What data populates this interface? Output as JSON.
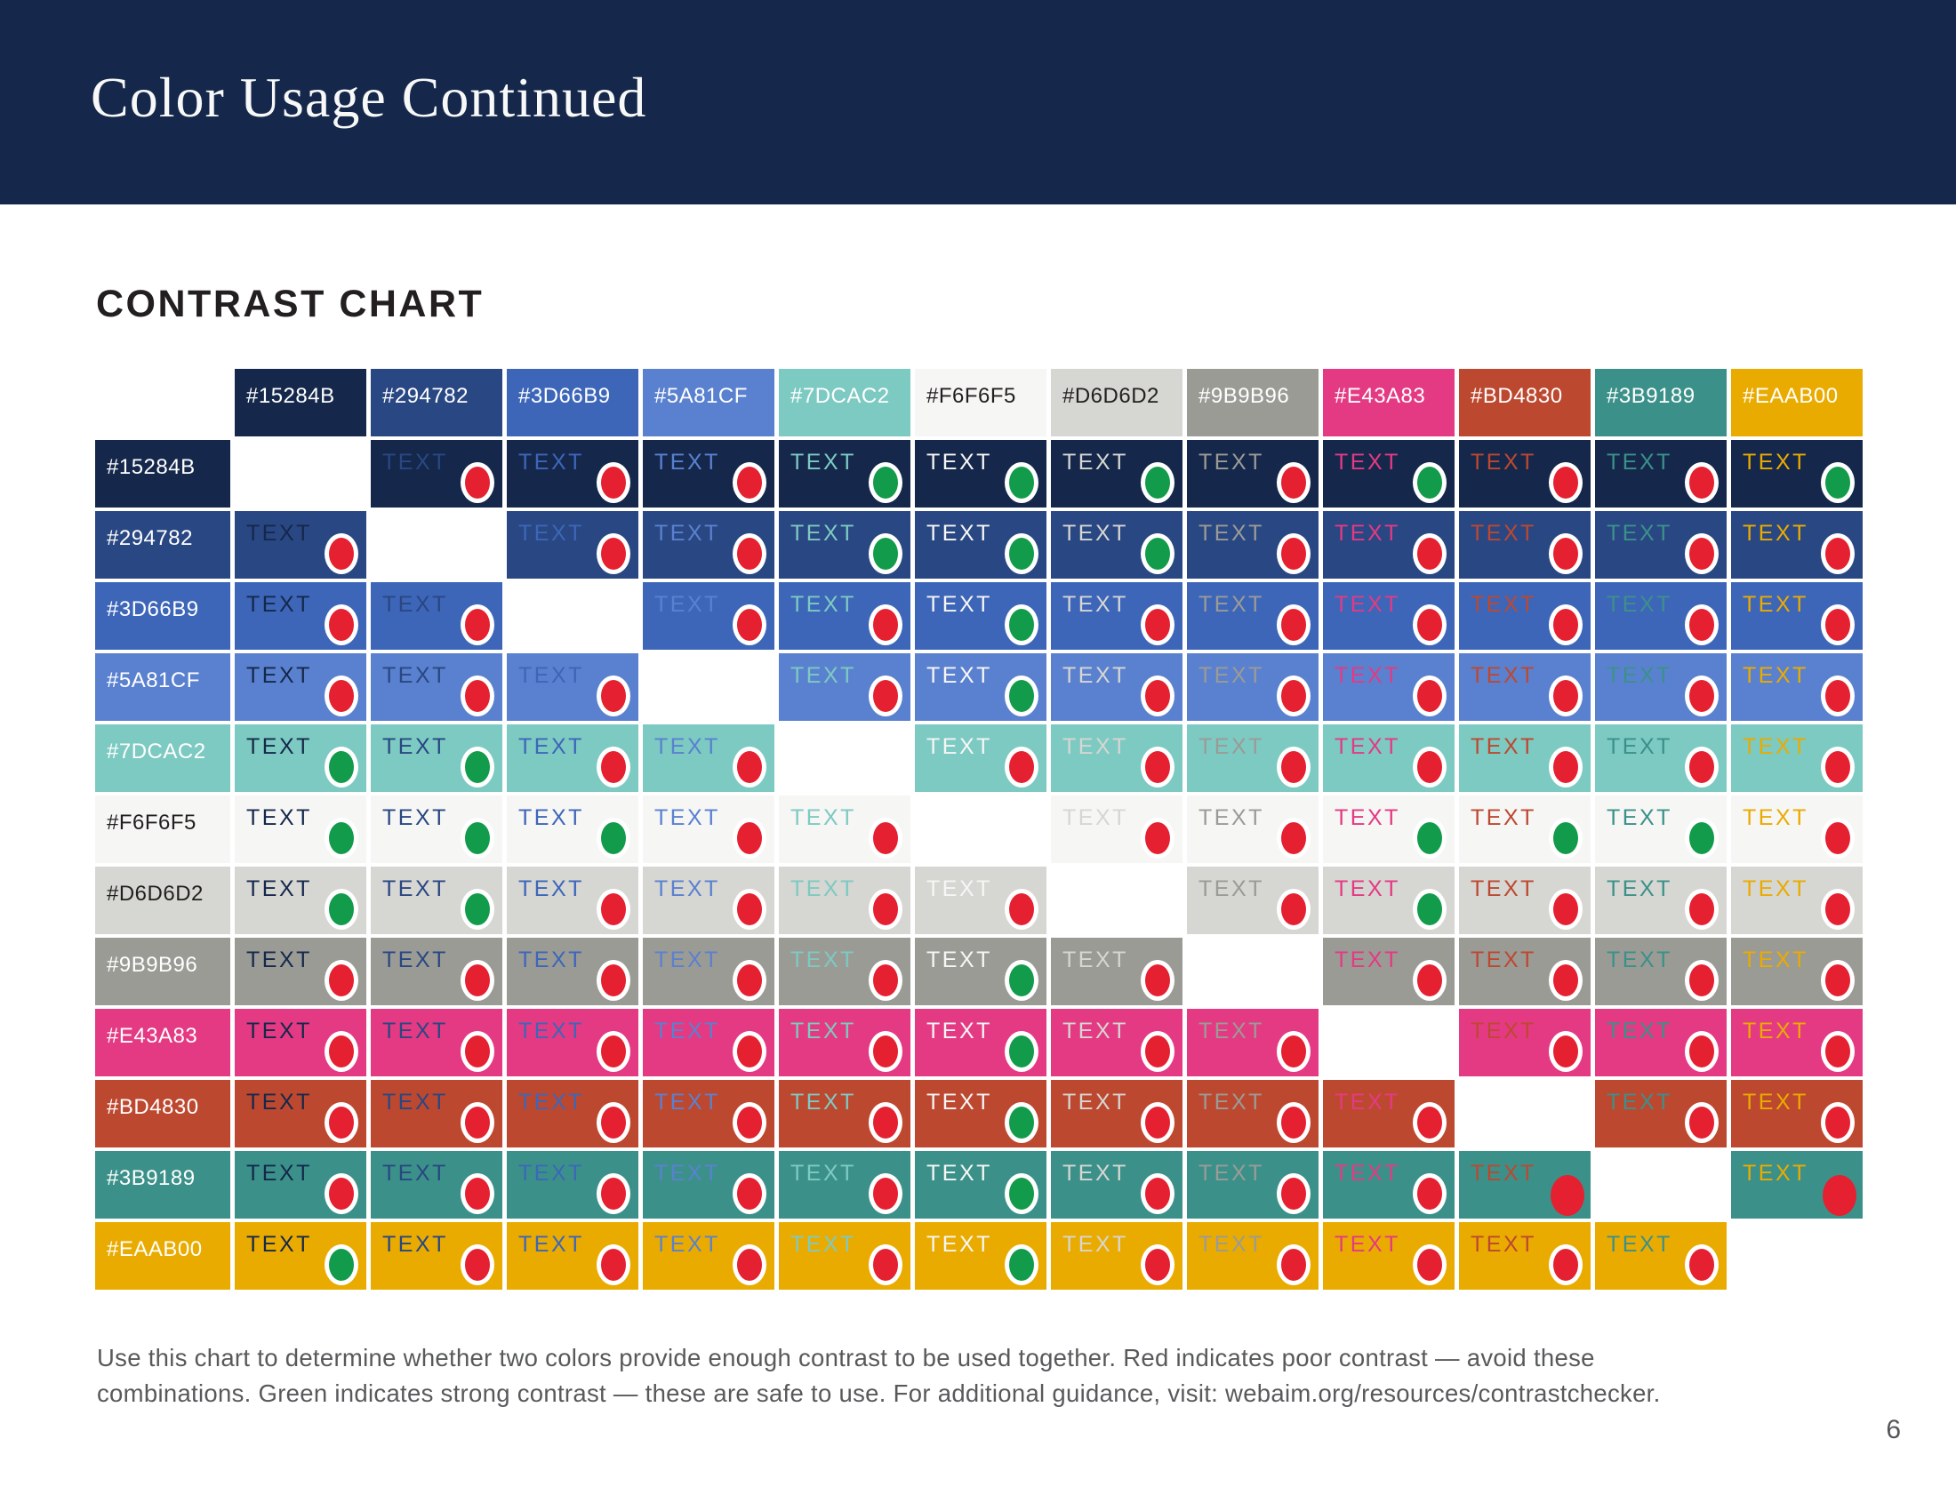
{
  "header": {
    "title": "Color Usage Continued"
  },
  "section": {
    "heading": "CONTRAST CHART"
  },
  "description": {
    "line1": "Use this chart to determine whether two colors provide enough contrast to be used together. Red indicates poor contrast — avoid these",
    "line2": "combinations. Green indicates strong contrast — these are safe to use. For additional guidance, visit: webaim.org/resources/contrastchecker."
  },
  "footer": {
    "page_number": "6"
  },
  "chart_data": {
    "type": "heatmap",
    "title": "CONTRAST CHART",
    "cell_text_label": "TEXT",
    "colors": [
      "#15284B",
      "#294782",
      "#3D66B9",
      "#5A81CF",
      "#7DCAC2",
      "#F6F6F5",
      "#D6D6D2",
      "#9B9B96",
      "#E43A83",
      "#BD4830",
      "#3B9189",
      "#EAAB00"
    ],
    "dark_label_colors": [
      "#F6F6F5",
      "#D6D6D2"
    ],
    "label_text_dark": "#231F20",
    "label_text_light": "#FFFFFF",
    "dot_colors": {
      "red": "#E52030",
      "green": "#129B4B"
    },
    "matrix": [
      [
        "none",
        "red",
        "red",
        "red",
        "green",
        "green",
        "green",
        "red",
        "green",
        "red",
        "red",
        "green"
      ],
      [
        "red",
        "none",
        "red",
        "red",
        "green",
        "green",
        "green",
        "red",
        "red",
        "red",
        "red",
        "red"
      ],
      [
        "red",
        "red",
        "none",
        "red",
        "red",
        "green",
        "red",
        "red",
        "red",
        "red",
        "red",
        "red"
      ],
      [
        "red",
        "red",
        "red",
        "none",
        "red",
        "green",
        "red",
        "red",
        "red",
        "red",
        "red",
        "red"
      ],
      [
        "green",
        "green",
        "red",
        "red",
        "none",
        "red",
        "red",
        "red",
        "red",
        "red",
        "red",
        "red"
      ],
      [
        "green",
        "green",
        "green",
        "red",
        "red",
        "none",
        "red",
        "red",
        "green",
        "green",
        "green",
        "red"
      ],
      [
        "green",
        "green",
        "red",
        "red",
        "red",
        "red",
        "none",
        "red",
        "green",
        "red",
        "red",
        "red"
      ],
      [
        "red",
        "red",
        "red",
        "red",
        "red",
        "green",
        "red",
        "none",
        "red",
        "red",
        "red",
        "red"
      ],
      [
        "red",
        "red",
        "red",
        "red",
        "red",
        "green",
        "red",
        "red",
        "none",
        "red",
        "red",
        "red"
      ],
      [
        "red",
        "red",
        "red",
        "red",
        "red",
        "green",
        "red",
        "red",
        "red",
        "none",
        "red",
        "red"
      ],
      [
        "red",
        "red",
        "red",
        "red",
        "red",
        "green",
        "red",
        "red",
        "red",
        "red_noring",
        "none",
        "red_noring"
      ],
      [
        "green",
        "red",
        "red",
        "red",
        "red",
        "green",
        "red",
        "red",
        "red",
        "red",
        "red",
        "none"
      ]
    ]
  }
}
